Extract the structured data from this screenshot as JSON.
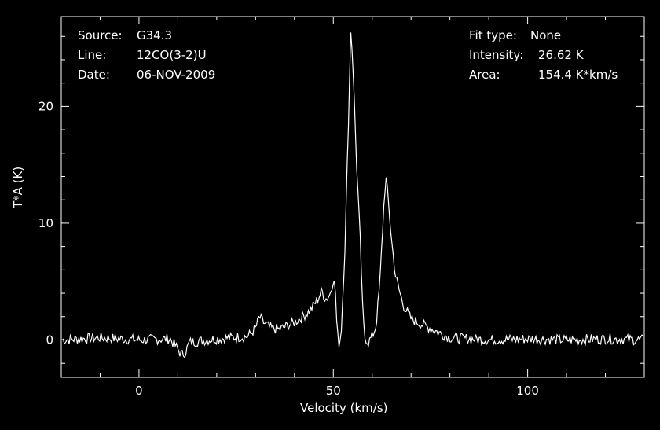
{
  "header_left": {
    "source_label": "Source:",
    "source_value": "G34.3",
    "line_label": "Line:",
    "line_value": "12CO(3-2)U",
    "date_label": "Date:",
    "date_value": "06-NOV-2009"
  },
  "header_right": {
    "fit_label": "Fit type:",
    "fit_value": "None",
    "intensity_label": "Intensity:",
    "intensity_value": "26.62 K",
    "area_label": "Area:",
    "area_value": "154.4 K*km/s"
  },
  "chart_data": {
    "type": "line",
    "xlabel": "Velocity (km/s)",
    "ylabel": "T*A (K)",
    "xlim": [
      -20,
      130
    ],
    "ylim": [
      -3.2,
      27.7
    ],
    "x_ticks": [
      "0",
      "50",
      "100"
    ],
    "x_tick_values": [
      0,
      50,
      100
    ],
    "y_ticks": [
      "0",
      "10",
      "20"
    ],
    "y_tick_values": [
      0,
      10,
      20
    ],
    "baseline": {
      "value": 0,
      "color": "#ff0000"
    },
    "line_color": "#ffffff",
    "series": [
      {
        "x": [
          -20,
          -10,
          0,
          8,
          10,
          11,
          12,
          13,
          20,
          28,
          30,
          31,
          32,
          34,
          36,
          40,
          44,
          46,
          47,
          48,
          49,
          50,
          50.5,
          51,
          51.5,
          52,
          53,
          54,
          54.5,
          55,
          56,
          57,
          57.5,
          58,
          59,
          60,
          61,
          62,
          63,
          63.5,
          64,
          65,
          66,
          67,
          68,
          70,
          73,
          75,
          78,
          80,
          85,
          90,
          100,
          110,
          120,
          130
        ],
        "y": [
          0,
          0.2,
          0,
          0.1,
          -0.8,
          -1.3,
          -1.0,
          -0.2,
          0.1,
          0.3,
          1.0,
          2.0,
          1.5,
          1.0,
          0.9,
          1.5,
          2.5,
          3.5,
          4.2,
          3.5,
          3.8,
          5.2,
          4.5,
          0.5,
          -0.3,
          0.5,
          8.0,
          20.0,
          26.6,
          24.0,
          15.0,
          8.0,
          3.0,
          0.3,
          -0.2,
          0.3,
          1.2,
          5.0,
          11.5,
          14.0,
          12.5,
          8.5,
          5.5,
          4.2,
          3.0,
          1.8,
          1.3,
          1.0,
          0.5,
          0.2,
          0.1,
          0,
          0.1,
          0,
          0.1,
          0
        ]
      }
    ]
  }
}
